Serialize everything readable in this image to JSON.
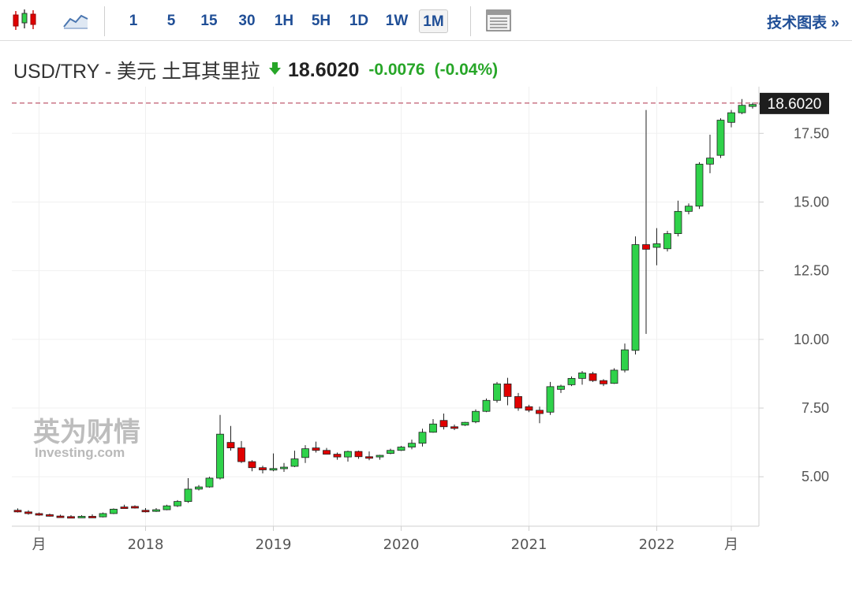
{
  "toolbar": {
    "candles_icon": "candlestick-icon",
    "line_icon": "line-chart-icon",
    "timeframes": [
      "1",
      "5",
      "15",
      "30",
      "1H",
      "5H",
      "1D",
      "1W",
      "1M"
    ],
    "active_timeframe": "1M",
    "table_icon": "table-icon",
    "tech_chart_link": "技术图表 »"
  },
  "header": {
    "pair": "USD/TRY - 美元 土耳其里拉",
    "direction_icon": "arrow-down-icon",
    "price": "18.6020",
    "change": "-0.0076",
    "change_pct": "(-0.04%)"
  },
  "watermark": {
    "brand_cn": "英为财情",
    "brand_en": "Investing.com"
  },
  "colors": {
    "up": "#2fd24a",
    "down": "#e00000",
    "price_line": "#b0304a",
    "price_tag_bg": "#1e1e1e",
    "change": "#27a628",
    "link": "#1f4e96"
  },
  "chart_data": {
    "type": "candlestick",
    "interval": "1M",
    "last_price_label": "18.6020",
    "ylim": [
      3.2,
      19.2
    ],
    "yticks": [
      5.0,
      7.5,
      10.0,
      12.5,
      15.0,
      17.5
    ],
    "ytick_labels": [
      "5.00",
      "7.50",
      "10.00",
      "12.50",
      "15.00",
      "17.50"
    ],
    "xtick_labels": [
      {
        "label": "月",
        "index": 2
      },
      {
        "label": "2018",
        "index": 12
      },
      {
        "label": "2019",
        "index": 24
      },
      {
        "label": "2020",
        "index": 36
      },
      {
        "label": "2021",
        "index": 48
      },
      {
        "label": "2022",
        "index": 60
      },
      {
        "label": "月",
        "index": 67
      }
    ],
    "ohlc": [
      [
        3.78,
        3.85,
        3.7,
        3.72
      ],
      [
        3.72,
        3.78,
        3.62,
        3.66
      ],
      [
        3.66,
        3.7,
        3.58,
        3.62
      ],
      [
        3.62,
        3.66,
        3.55,
        3.57
      ],
      [
        3.57,
        3.62,
        3.52,
        3.55
      ],
      [
        3.55,
        3.6,
        3.51,
        3.53
      ],
      [
        3.53,
        3.6,
        3.5,
        3.56
      ],
      [
        3.56,
        3.63,
        3.52,
        3.54
      ],
      [
        3.54,
        3.7,
        3.52,
        3.66
      ],
      [
        3.66,
        3.85,
        3.64,
        3.82
      ],
      [
        3.9,
        3.98,
        3.84,
        3.86
      ],
      [
        3.92,
        3.96,
        3.84,
        3.86
      ],
      [
        3.78,
        3.86,
        3.7,
        3.74
      ],
      [
        3.74,
        3.86,
        3.72,
        3.8
      ],
      [
        3.8,
        3.98,
        3.78,
        3.94
      ],
      [
        3.94,
        4.15,
        3.9,
        4.1
      ],
      [
        4.1,
        4.95,
        4.05,
        4.55
      ],
      [
        4.55,
        4.7,
        4.5,
        4.63
      ],
      [
        4.63,
        5.0,
        4.6,
        4.95
      ],
      [
        4.95,
        7.25,
        4.9,
        6.55
      ],
      [
        6.25,
        6.85,
        5.95,
        6.05
      ],
      [
        6.05,
        6.3,
        5.5,
        5.55
      ],
      [
        5.55,
        5.6,
        5.2,
        5.33
      ],
      [
        5.33,
        5.4,
        5.12,
        5.25
      ],
      [
        5.25,
        5.85,
        5.2,
        5.3
      ],
      [
        5.3,
        5.5,
        5.18,
        5.35
      ],
      [
        5.38,
        5.95,
        5.35,
        5.65
      ],
      [
        5.7,
        6.15,
        5.5,
        6.02
      ],
      [
        6.05,
        6.28,
        5.88,
        5.96
      ],
      [
        5.96,
        6.05,
        5.85,
        5.82
      ],
      [
        5.82,
        5.88,
        5.62,
        5.72
      ],
      [
        5.72,
        5.95,
        5.55,
        5.92
      ],
      [
        5.92,
        5.95,
        5.65,
        5.73
      ],
      [
        5.73,
        5.92,
        5.6,
        5.72
      ],
      [
        5.72,
        5.8,
        5.62,
        5.78
      ],
      [
        5.85,
        6.02,
        5.82,
        5.96
      ],
      [
        5.96,
        6.12,
        5.94,
        6.08
      ],
      [
        6.08,
        6.35,
        6.0,
        6.22
      ],
      [
        6.22,
        6.75,
        6.1,
        6.62
      ],
      [
        6.62,
        7.1,
        6.6,
        6.92
      ],
      [
        7.05,
        7.3,
        6.72,
        6.82
      ],
      [
        6.82,
        6.9,
        6.7,
        6.76
      ],
      [
        6.88,
        7.0,
        6.85,
        6.98
      ],
      [
        7.0,
        7.45,
        6.95,
        7.38
      ],
      [
        7.38,
        7.85,
        7.35,
        7.78
      ],
      [
        7.78,
        8.45,
        7.7,
        8.38
      ],
      [
        8.38,
        8.6,
        7.6,
        7.92
      ],
      [
        7.92,
        8.05,
        7.4,
        7.5
      ],
      [
        7.55,
        7.62,
        7.35,
        7.42
      ],
      [
        7.42,
        7.55,
        6.95,
        7.3
      ],
      [
        7.35,
        8.45,
        7.25,
        8.28
      ],
      [
        8.18,
        8.35,
        8.05,
        8.3
      ],
      [
        8.35,
        8.65,
        8.3,
        8.58
      ],
      [
        8.58,
        8.85,
        8.35,
        8.78
      ],
      [
        8.75,
        8.82,
        8.45,
        8.5
      ],
      [
        8.5,
        8.55,
        8.3,
        8.38
      ],
      [
        8.4,
        8.95,
        8.38,
        8.88
      ],
      [
        8.88,
        9.85,
        8.8,
        9.62
      ],
      [
        9.6,
        13.75,
        9.45,
        13.45
      ],
      [
        13.45,
        18.35,
        10.2,
        13.28
      ],
      [
        13.35,
        14.05,
        12.7,
        13.48
      ],
      [
        13.3,
        13.95,
        13.2,
        13.85
      ],
      [
        13.85,
        15.05,
        13.75,
        14.66
      ],
      [
        14.66,
        14.95,
        14.55,
        14.85
      ],
      [
        14.85,
        16.45,
        14.75,
        16.38
      ],
      [
        16.38,
        17.45,
        16.05,
        16.6
      ],
      [
        16.7,
        18.05,
        16.6,
        17.98
      ],
      [
        17.9,
        18.35,
        17.72,
        18.25
      ],
      [
        18.25,
        18.75,
        18.2,
        18.52
      ],
      [
        18.48,
        18.62,
        18.4,
        18.55
      ],
      [
        18.61,
        18.66,
        18.38,
        18.6
      ]
    ]
  }
}
